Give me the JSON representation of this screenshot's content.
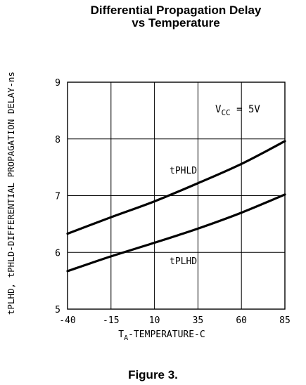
{
  "chart_data": {
    "type": "line",
    "title": "Differential Propagation Delay",
    "subtitle": "vs Temperature",
    "xlabel_main": "T",
    "xlabel_sub": "A",
    "xlabel_rest": "-TEMPERATURE-C",
    "ylabel": "tPLHD, tPHLD-DIFFERENTIAL PROPAGATION DELAY-ns",
    "xlim": [
      -40,
      85
    ],
    "ylim": [
      5,
      9
    ],
    "xticks": [
      "-40",
      "-15",
      "10",
      "35",
      "60",
      "85"
    ],
    "yticks": [
      "5",
      "6",
      "7",
      "8",
      "9"
    ],
    "grid": true,
    "annotation_main": "V",
    "annotation_sub": "CC",
    "annotation_rest": " = 5V",
    "series": [
      {
        "name": "tPHLD",
        "x": [
          -40,
          -15,
          10,
          35,
          60,
          85
        ],
        "y": [
          6.33,
          6.62,
          6.9,
          7.22,
          7.56,
          7.96
        ]
      },
      {
        "name": "tPLHD",
        "x": [
          -40,
          -15,
          10,
          35,
          60,
          85
        ],
        "y": [
          5.67,
          5.93,
          6.17,
          6.42,
          6.7,
          7.02
        ]
      }
    ]
  },
  "figure_caption": "Figure 3."
}
